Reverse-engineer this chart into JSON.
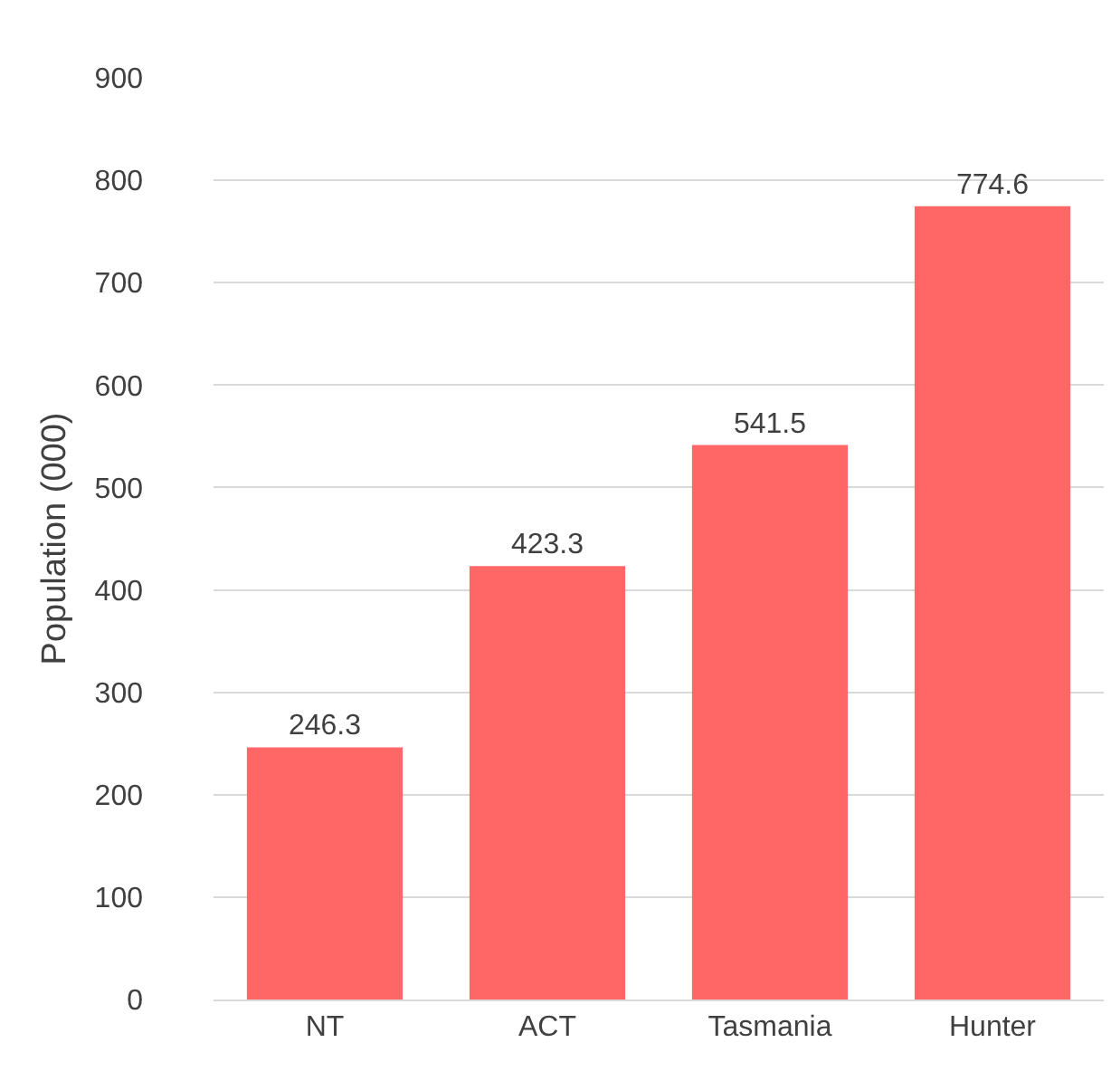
{
  "chart_data": {
    "type": "bar",
    "ylabel": "Population (000)",
    "categories": [
      "NT",
      "ACT",
      "Tasmania",
      "Hunter"
    ],
    "values": [
      246.3,
      423.3,
      541.5,
      774.6
    ],
    "color": "#ff6666",
    "ylim": [
      0,
      900
    ],
    "yticks": [
      0,
      100,
      200,
      300,
      400,
      500,
      600,
      700,
      800,
      900
    ],
    "grid": "y",
    "data_labels": true
  }
}
